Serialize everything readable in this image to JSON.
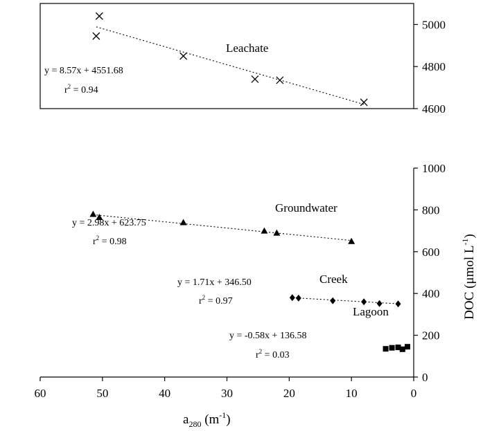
{
  "chart_data": [
    {
      "type": "scatter",
      "panel": "top",
      "xlim": [
        60,
        0
      ],
      "ylim": [
        4600,
        5100
      ],
      "y_ticks": [
        4600,
        4800,
        5000
      ],
      "marker": "x",
      "series": [
        {
          "name": "Leachate",
          "points": [
            [
              51,
              4945
            ],
            [
              50.5,
              5040
            ],
            [
              37,
              4850
            ],
            [
              25.5,
              4740
            ],
            [
              21.5,
              4735
            ],
            [
              8,
              4630
            ]
          ],
          "fit": {
            "slope": 8.57,
            "intercept": 4551.68,
            "x_range": [
              51,
              8
            ]
          },
          "equation": "y = 8.57x + 4551.68",
          "r2": "0.94"
        }
      ]
    },
    {
      "type": "scatter",
      "panel": "bottom",
      "xlim": [
        60,
        0
      ],
      "ylim": [
        0,
        1000
      ],
      "x_ticks": [
        60,
        50,
        40,
        30,
        20,
        10,
        0
      ],
      "y_ticks": [
        0,
        200,
        400,
        600,
        800,
        1000
      ],
      "xlabel_base": "a",
      "xlabel_sub": "280",
      "xlabel_unit": " (m",
      "xlabel_sup": "-1",
      "xlabel_close": ")",
      "ylabel_main": "DOC (μmol L",
      "ylabel_sup": "-1",
      "ylabel_close": ")",
      "series": [
        {
          "name": "Groundwater",
          "marker": "triangle",
          "points": [
            [
              51.5,
              780
            ],
            [
              50.5,
              765
            ],
            [
              37,
              740
            ],
            [
              24,
              700
            ],
            [
              22,
              690
            ],
            [
              10,
              650
            ]
          ],
          "fit": {
            "slope": 2.98,
            "intercept": 623.75,
            "x_range": [
              51.5,
              10
            ]
          },
          "equation": "y = 2.98x + 623.75",
          "r2": "0.98"
        },
        {
          "name": "Creek",
          "marker": "diamond",
          "points": [
            [
              19.5,
              380
            ],
            [
              18.5,
              378
            ],
            [
              13,
              365
            ],
            [
              8,
              360
            ],
            [
              5.5,
              352
            ],
            [
              2.5,
              350
            ]
          ],
          "fit": {
            "slope": 1.71,
            "intercept": 346.5,
            "x_range": [
              19.5,
              2.5
            ]
          },
          "equation": "y = 1.71x + 346.50",
          "r2": "0.97"
        },
        {
          "name": "Lagoon",
          "marker": "square",
          "points": [
            [
              4.5,
              135
            ],
            [
              3.5,
              140
            ],
            [
              2.5,
              142
            ],
            [
              1.8,
              133
            ],
            [
              1,
              145
            ]
          ],
          "fit": {
            "slope": -0.58,
            "intercept": 136.58,
            "x_range": [
              4.5,
              1
            ]
          },
          "equation": "y = -0.58x + 136.58",
          "r2": "0.03"
        }
      ]
    }
  ]
}
